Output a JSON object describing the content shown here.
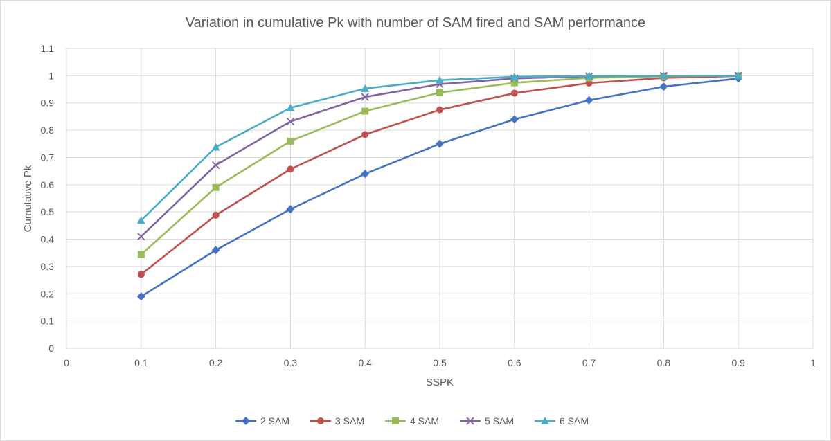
{
  "chart_data": {
    "type": "line",
    "title": "Variation in cumulative Pk with number of SAM fired and SAM performance",
    "xlabel": "SSPK",
    "ylabel": "Cumulative Pk",
    "xlim": [
      0,
      1
    ],
    "ylim": [
      0,
      1.1
    ],
    "x_ticks": [
      "0",
      "0.1",
      "0.2",
      "0.3",
      "0.4",
      "0.5",
      "0.6",
      "0.7",
      "0.8",
      "0.9",
      "1"
    ],
    "y_ticks": [
      "0",
      "0.1",
      "0.2",
      "0.3",
      "0.4",
      "0.5",
      "0.6",
      "0.7",
      "0.8",
      "0.9",
      "1",
      "1.1"
    ],
    "grid": true,
    "legend_position": "bottom",
    "x": [
      0.1,
      0.2,
      0.3,
      0.4,
      0.5,
      0.6,
      0.7,
      0.8,
      0.9
    ],
    "series": [
      {
        "name": "2 SAM",
        "color": "#4472c4",
        "marker": "diamond",
        "values": [
          0.19,
          0.36,
          0.51,
          0.64,
          0.75,
          0.84,
          0.91,
          0.96,
          0.99
        ]
      },
      {
        "name": "3 SAM",
        "color": "#c0504d",
        "marker": "circle",
        "values": [
          0.271,
          0.488,
          0.657,
          0.784,
          0.875,
          0.936,
          0.973,
          0.992,
          0.999
        ]
      },
      {
        "name": "4 SAM",
        "color": "#9bbb59",
        "marker": "square",
        "values": [
          0.344,
          0.59,
          0.76,
          0.87,
          0.938,
          0.974,
          0.992,
          0.998,
          1.0
        ]
      },
      {
        "name": "5 SAM",
        "color": "#8064a2",
        "marker": "x",
        "values": [
          0.41,
          0.672,
          0.832,
          0.922,
          0.969,
          0.99,
          0.998,
          1.0,
          1.0
        ]
      },
      {
        "name": "6 SAM",
        "color": "#4bacc6",
        "marker": "triangle",
        "values": [
          0.469,
          0.738,
          0.882,
          0.953,
          0.984,
          0.996,
          0.999,
          1.0,
          1.0
        ]
      }
    ]
  }
}
